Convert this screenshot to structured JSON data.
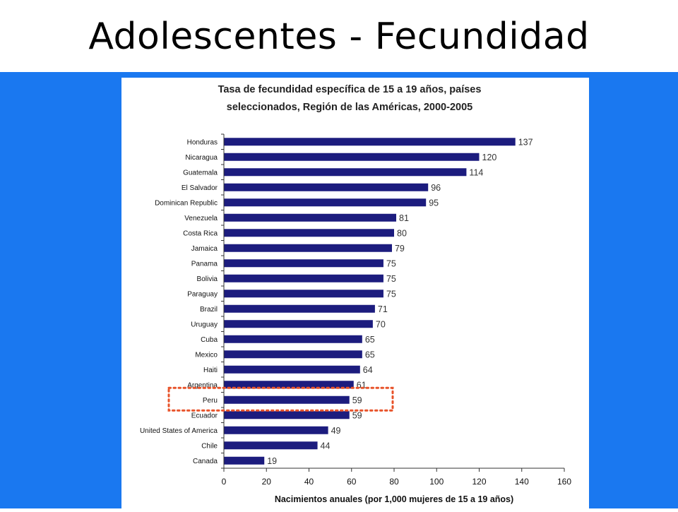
{
  "slide": {
    "title": "Adolescentes - Fecundidad"
  },
  "colors": {
    "panel_blue": "#1a78f0",
    "bar_fill": "#1c1c7e",
    "highlight": "#e8532a"
  },
  "chart_data": {
    "type": "bar",
    "orientation": "horizontal",
    "title": "Tasa de fecundidad específica de 15 a 19 años, países seleccionados, Región de las Américas, 2000-2005",
    "title_lines": [
      "Tasa de fecundidad específica de 15 a 19 años, países",
      "seleccionados, Región de las Américas, 2000-2005"
    ],
    "xlabel": "Nacimientos anuales (por 1,000 mujeres de 15 a 19 años)",
    "ylabel": "",
    "xlim": [
      0,
      160
    ],
    "xticks": [
      0,
      20,
      40,
      60,
      80,
      100,
      120,
      140,
      160
    ],
    "grid": false,
    "categories": [
      "Honduras",
      "Nicaragua",
      "Guatemala",
      "El Salvador",
      "Dominican Republic",
      "Venezuela",
      "Costa Rica",
      "Jamaica",
      "Panama",
      "Bolivia",
      "Paraguay",
      "Brazil",
      "Uruguay",
      "Cuba",
      "Mexico",
      "Haiti",
      "Argentina",
      "Peru",
      "Ecuador",
      "United States of America",
      "Chile",
      "Canada"
    ],
    "values": [
      137,
      120,
      114,
      96,
      95,
      81,
      80,
      79,
      75,
      75,
      75,
      71,
      70,
      65,
      65,
      64,
      61,
      59,
      59,
      49,
      44,
      19
    ],
    "highlighted_category": "Peru"
  }
}
